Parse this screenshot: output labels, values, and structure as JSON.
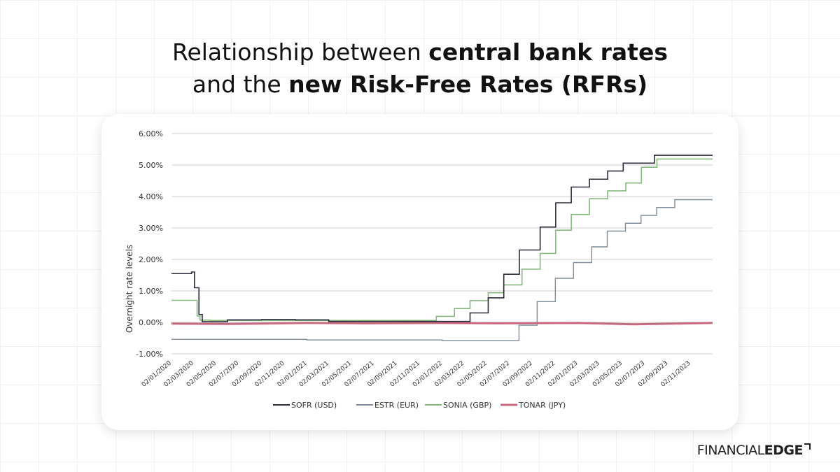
{
  "title": {
    "line1_regular": "Relationship between ",
    "line1_bold": "central bank rates",
    "line2_regular": "and the ",
    "line2_bold": "new Risk-Free Rates (RFRs)"
  },
  "logo": {
    "part1": "FINANCIAL",
    "part2": "EDGE"
  },
  "chart_data": {
    "type": "line",
    "title": "",
    "xlabel": "",
    "ylabel": "Overnight rate levels",
    "ylim": [
      -1,
      6
    ],
    "y_ticks": [
      -1,
      0,
      1,
      2,
      3,
      4,
      5,
      6
    ],
    "y_tick_labels": [
      "-1.00%",
      "0.00%",
      "1.00%",
      "2.00%",
      "3.00%",
      "4.00%",
      "5.00%",
      "6.00%"
    ],
    "x_range": [
      "2020-01-02",
      "2023-12-31"
    ],
    "x_tick_labels": [
      "02/01/2020",
      "02/03/2020",
      "02/05/2020",
      "02/07/2020",
      "02/09/2020",
      "02/11/2020",
      "02/01/2021",
      "02/03/2021",
      "02/05/2021",
      "02/07/2021",
      "02/09/2021",
      "02/11/2021",
      "02/01/2022",
      "02/03/2022",
      "02/05/2022",
      "02/07/2022",
      "02/09/2022",
      "02/11/2022",
      "02/01/2023",
      "02/03/2023",
      "02/05/2023",
      "02/07/2023",
      "02/09/2023",
      "02/11/2023"
    ],
    "x_tick_dates": [
      "2020-01-02",
      "2020-03-02",
      "2020-05-02",
      "2020-07-02",
      "2020-09-02",
      "2020-11-02",
      "2021-01-02",
      "2021-03-02",
      "2021-05-02",
      "2021-07-02",
      "2021-09-02",
      "2021-11-02",
      "2022-01-02",
      "2022-03-02",
      "2022-05-02",
      "2022-07-02",
      "2022-09-02",
      "2022-11-02",
      "2023-01-02",
      "2023-03-02",
      "2023-05-02",
      "2023-07-02",
      "2023-09-02",
      "2023-11-02"
    ],
    "grid": true,
    "legend_position": "bottom",
    "series": [
      {
        "name": "SOFR (USD)",
        "color": "#2b2d3b",
        "step": true,
        "points": [
          [
            "2020-01-02",
            1.55
          ],
          [
            "2020-02-25",
            1.6
          ],
          [
            "2020-03-04",
            1.1
          ],
          [
            "2020-03-16",
            0.25
          ],
          [
            "2020-03-25",
            0.02
          ],
          [
            "2020-06-01",
            0.08
          ],
          [
            "2020-09-01",
            0.09
          ],
          [
            "2020-12-01",
            0.08
          ],
          [
            "2021-03-01",
            0.03
          ],
          [
            "2022-03-17",
            0.3
          ],
          [
            "2022-05-05",
            0.78
          ],
          [
            "2022-06-16",
            1.53
          ],
          [
            "2022-07-28",
            2.3
          ],
          [
            "2022-09-22",
            3.03
          ],
          [
            "2022-11-03",
            3.8
          ],
          [
            "2022-12-15",
            4.3
          ],
          [
            "2023-02-02",
            4.55
          ],
          [
            "2023-03-23",
            4.81
          ],
          [
            "2023-05-04",
            5.06
          ],
          [
            "2023-07-27",
            5.31
          ],
          [
            "2023-12-31",
            5.31
          ]
        ]
      },
      {
        "name": "ESTR (EUR)",
        "color": "#7f8c99",
        "step": true,
        "points": [
          [
            "2020-01-02",
            -0.54
          ],
          [
            "2021-01-01",
            -0.56
          ],
          [
            "2022-01-01",
            -0.58
          ],
          [
            "2022-07-27",
            -0.09
          ],
          [
            "2022-09-14",
            0.66
          ],
          [
            "2022-11-02",
            1.4
          ],
          [
            "2022-12-21",
            1.9
          ],
          [
            "2023-02-08",
            2.4
          ],
          [
            "2023-03-22",
            2.9
          ],
          [
            "2023-05-10",
            3.15
          ],
          [
            "2023-06-21",
            3.4
          ],
          [
            "2023-08-02",
            3.65
          ],
          [
            "2023-09-20",
            3.9
          ],
          [
            "2023-12-31",
            3.9
          ]
        ]
      },
      {
        "name": "SONIA (GBP)",
        "color": "#86b97e",
        "step": true,
        "points": [
          [
            "2020-01-02",
            0.7
          ],
          [
            "2020-03-11",
            0.2
          ],
          [
            "2020-03-19",
            0.07
          ],
          [
            "2020-04-15",
            0.06
          ],
          [
            "2021-12-16",
            0.19
          ],
          [
            "2022-02-03",
            0.44
          ],
          [
            "2022-03-17",
            0.69
          ],
          [
            "2022-05-05",
            0.94
          ],
          [
            "2022-06-16",
            1.19
          ],
          [
            "2022-08-04",
            1.69
          ],
          [
            "2022-09-22",
            2.19
          ],
          [
            "2022-11-03",
            2.93
          ],
          [
            "2022-12-15",
            3.43
          ],
          [
            "2023-02-02",
            3.93
          ],
          [
            "2023-03-23",
            4.18
          ],
          [
            "2023-05-11",
            4.43
          ],
          [
            "2023-06-22",
            4.93
          ],
          [
            "2023-08-03",
            5.19
          ],
          [
            "2023-12-31",
            5.19
          ]
        ]
      },
      {
        "name": "TONAR (JPY)",
        "color": "#c8687f",
        "step": false,
        "points": [
          [
            "2020-01-02",
            -0.04
          ],
          [
            "2020-06-01",
            -0.05
          ],
          [
            "2021-01-01",
            -0.02
          ],
          [
            "2021-06-01",
            -0.03
          ],
          [
            "2022-01-01",
            -0.02
          ],
          [
            "2022-06-01",
            -0.03
          ],
          [
            "2023-01-01",
            -0.02
          ],
          [
            "2023-06-01",
            -0.06
          ],
          [
            "2023-12-31",
            -0.02
          ]
        ]
      }
    ]
  }
}
